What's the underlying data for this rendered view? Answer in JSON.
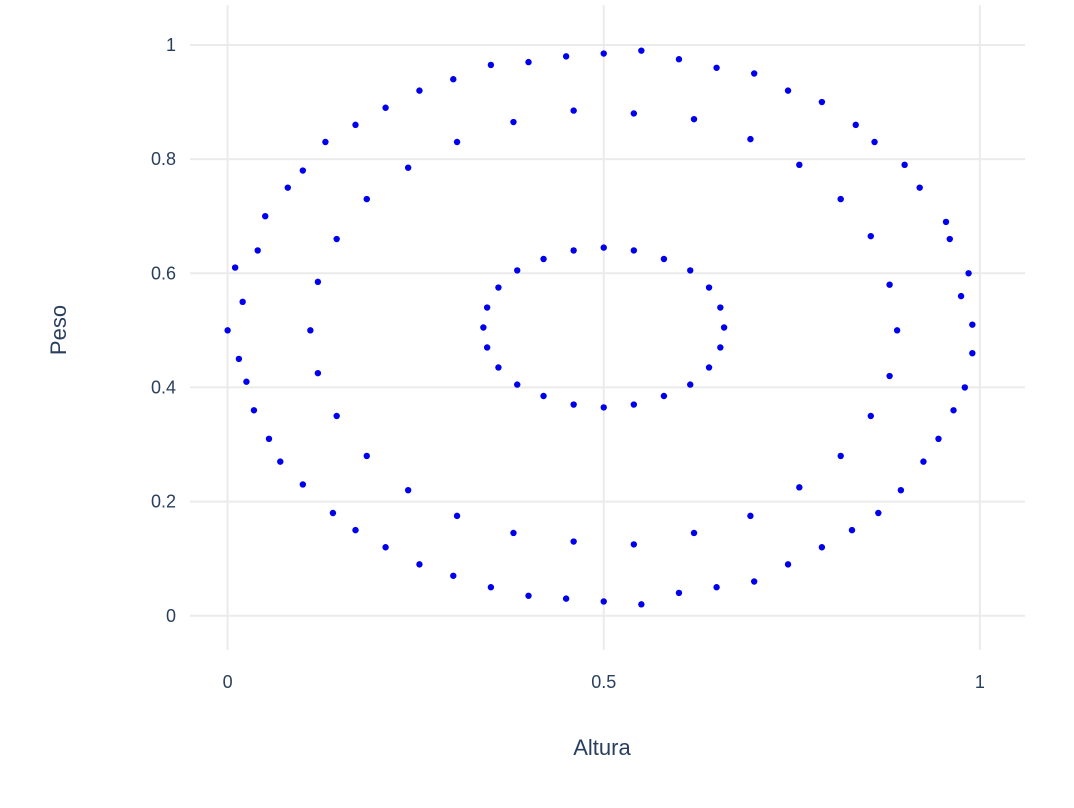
{
  "chart_data": {
    "type": "scatter",
    "x_label": "Altura",
    "y_label": "Peso",
    "color": "#0000ee",
    "grid": true,
    "xlim": [
      -0.05,
      1.06
    ],
    "ylim": [
      -0.06,
      1.07
    ],
    "xticks": [
      0,
      0.5,
      1
    ],
    "yticks": [
      0,
      0.2,
      0.4,
      0.6,
      0.8,
      1
    ],
    "x": [
      0.99,
      0.975,
      0.985,
      0.96,
      0.955,
      0.92,
      0.9,
      0.86,
      0.835,
      0.79,
      0.745,
      0.7,
      0.65,
      0.6,
      0.55,
      0.5,
      0.45,
      0.4,
      0.35,
      0.3,
      0.255,
      0.21,
      0.17,
      0.13,
      0.1,
      0.08,
      0.05,
      0.04,
      0.01,
      0.02,
      0.0,
      0.015,
      0.025,
      0.035,
      0.055,
      0.07,
      0.1,
      0.14,
      0.17,
      0.21,
      0.255,
      0.3,
      0.35,
      0.4,
      0.45,
      0.5,
      0.55,
      0.6,
      0.65,
      0.7,
      0.745,
      0.79,
      0.83,
      0.865,
      0.895,
      0.925,
      0.945,
      0.965,
      0.98,
      0.99,
      0.89,
      0.88,
      0.855,
      0.815,
      0.76,
      0.695,
      0.62,
      0.54,
      0.46,
      0.38,
      0.305,
      0.24,
      0.185,
      0.145,
      0.12,
      0.11,
      0.12,
      0.145,
      0.185,
      0.24,
      0.305,
      0.38,
      0.46,
      0.54,
      0.62,
      0.695,
      0.76,
      0.815,
      0.855,
      0.88,
      0.66,
      0.655,
      0.64,
      0.615,
      0.58,
      0.54,
      0.5,
      0.46,
      0.42,
      0.385,
      0.36,
      0.345,
      0.34,
      0.345,
      0.36,
      0.385,
      0.42,
      0.46,
      0.5,
      0.54,
      0.58,
      0.615,
      0.64,
      0.655
    ],
    "y": [
      0.51,
      0.56,
      0.6,
      0.66,
      0.69,
      0.75,
      0.79,
      0.83,
      0.86,
      0.9,
      0.92,
      0.95,
      0.96,
      0.975,
      0.99,
      0.985,
      0.98,
      0.97,
      0.965,
      0.94,
      0.92,
      0.89,
      0.86,
      0.83,
      0.78,
      0.75,
      0.7,
      0.64,
      0.61,
      0.55,
      0.5,
      0.45,
      0.41,
      0.36,
      0.31,
      0.27,
      0.23,
      0.18,
      0.15,
      0.12,
      0.09,
      0.07,
      0.05,
      0.035,
      0.03,
      0.025,
      0.02,
      0.04,
      0.05,
      0.06,
      0.09,
      0.12,
      0.15,
      0.18,
      0.22,
      0.27,
      0.31,
      0.36,
      0.4,
      0.46,
      0.5,
      0.58,
      0.665,
      0.73,
      0.79,
      0.835,
      0.87,
      0.88,
      0.885,
      0.865,
      0.83,
      0.785,
      0.73,
      0.66,
      0.585,
      0.5,
      0.425,
      0.35,
      0.28,
      0.22,
      0.175,
      0.145,
      0.13,
      0.125,
      0.145,
      0.175,
      0.225,
      0.28,
      0.35,
      0.42,
      0.505,
      0.54,
      0.575,
      0.605,
      0.625,
      0.64,
      0.645,
      0.64,
      0.625,
      0.605,
      0.575,
      0.54,
      0.505,
      0.47,
      0.435,
      0.405,
      0.385,
      0.37,
      0.365,
      0.37,
      0.385,
      0.405,
      0.435,
      0.47
    ]
  }
}
